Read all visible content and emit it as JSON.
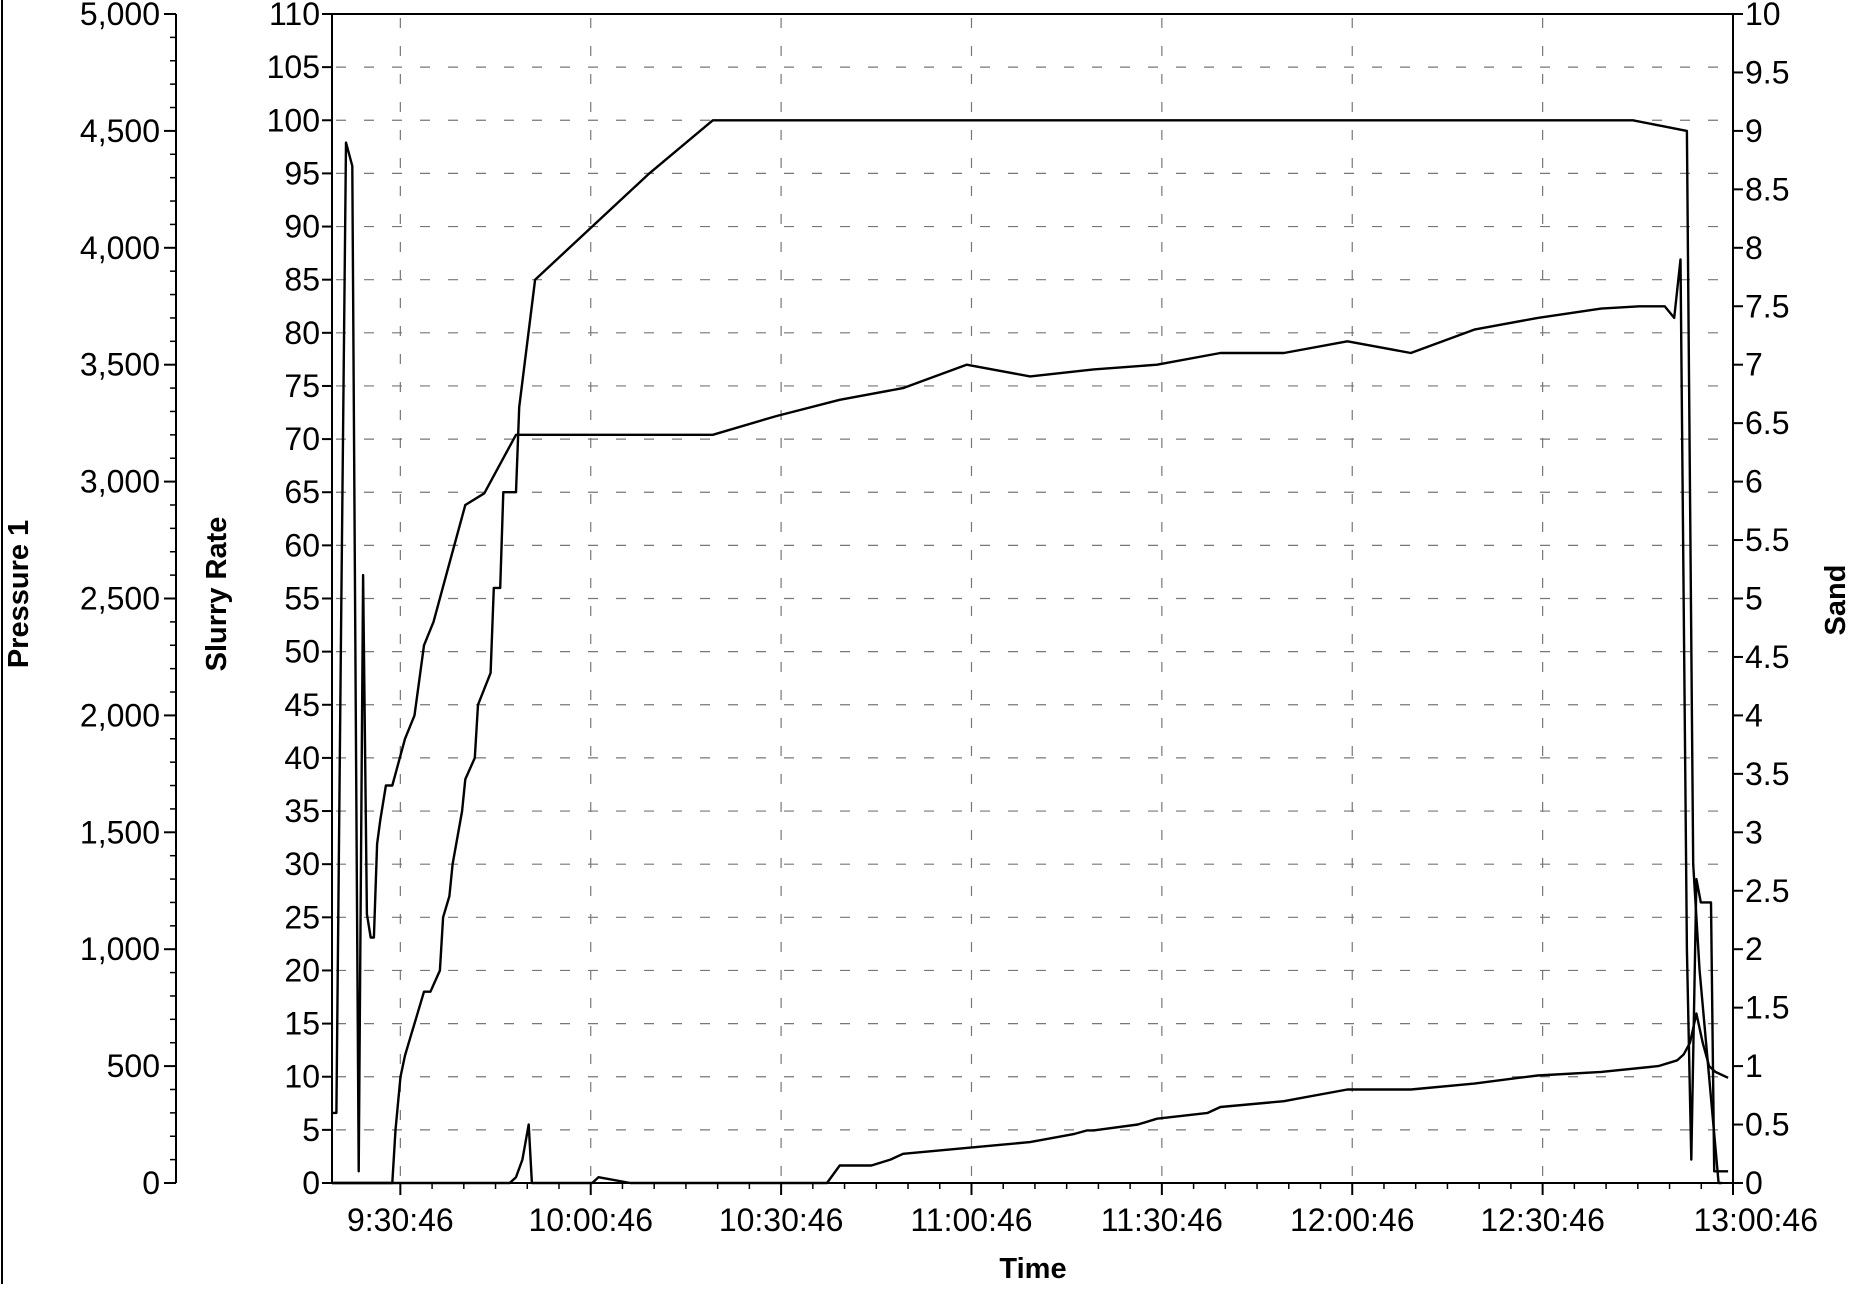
{
  "chart_data": {
    "type": "line",
    "xlabel": "Time",
    "ylabels": {
      "left_outer": "Pressure 1",
      "left_inner": "Slurry Rate",
      "right": "Sand"
    },
    "x_ticks": [
      "9:30:46",
      "10:00:46",
      "10:30:46",
      "11:00:46",
      "11:30:46",
      "12:00:46",
      "12:30:46",
      "13:00:46"
    ],
    "xlim": [
      "9:20:00",
      "13:00:46"
    ],
    "axes": {
      "pressure": {
        "ylim": [
          0,
          5000
        ],
        "ticks": [
          "0",
          "500",
          "1,000",
          "1,500",
          "2,000",
          "2,500",
          "3,000",
          "3,500",
          "4,000",
          "4,500",
          "5,000"
        ]
      },
      "slurry_rate": {
        "ylim": [
          0,
          110
        ],
        "ticks": [
          "0",
          "5",
          "10",
          "15",
          "20",
          "25",
          "30",
          "35",
          "40",
          "45",
          "50",
          "55",
          "60",
          "65",
          "70",
          "75",
          "80",
          "85",
          "90",
          "95",
          "100",
          "105",
          "110"
        ]
      },
      "sand": {
        "ylim": [
          0,
          10
        ],
        "ticks": [
          "0",
          "0.5",
          "1",
          "1.5",
          "2",
          "2.5",
          "3",
          "3.5",
          "4",
          "4.5",
          "5",
          "5.5",
          "6",
          "6.5",
          "7",
          "7.5",
          "8",
          "8.5",
          "9",
          "9.5",
          "10"
        ]
      }
    },
    "grid": true,
    "legend": "none",
    "series": [
      {
        "axis": "slurry_rate",
        "x_minutes": [
          0,
          1.5,
          2.5,
          3.5,
          4.5,
          5.5,
          6.5,
          7.5,
          8.5,
          9.5,
          10,
          10.8,
          11.5,
          12.5,
          13,
          14.5,
          15.5,
          17,
          17.5,
          18.5,
          19,
          20.5,
          21,
          22.5,
          23,
          25,
          25.5,
          26.5,
          27,
          29,
          29.5,
          32,
          50,
          60,
          80,
          100,
          120,
          140,
          160,
          190,
          205,
          213.5,
          214.5,
          215.5,
          218.5,
          219
        ],
        "values": [
          0,
          0,
          0,
          0,
          0,
          0,
          0,
          0,
          0,
          0,
          5,
          10,
          12,
          14,
          15,
          18,
          18,
          20,
          25,
          27,
          30,
          35,
          38,
          40,
          45,
          48,
          56,
          56,
          65,
          65,
          73,
          85,
          95,
          100,
          100,
          100,
          100,
          100,
          100,
          100,
          100,
          99,
          30,
          20,
          0,
          0
        ]
      },
      {
        "axis": "sand",
        "x_minutes": [
          0,
          28,
          29,
          30,
          31,
          31.5,
          41,
          42,
          47,
          50,
          60,
          70,
          78,
          80,
          85,
          88,
          90,
          100,
          110,
          117,
          119,
          120,
          127,
          130,
          138,
          140,
          150,
          152,
          160,
          170,
          180,
          187,
          190,
          200,
          209,
          212,
          213,
          214,
          215,
          216,
          217,
          218,
          220
        ],
        "values": [
          0,
          0,
          0.05,
          0.2,
          0.5,
          0,
          0,
          0.05,
          0,
          0,
          0,
          0,
          0,
          0.15,
          0.15,
          0.2,
          0.25,
          0.3,
          0.35,
          0.42,
          0.45,
          0.45,
          0.5,
          0.55,
          0.6,
          0.65,
          0.7,
          0.72,
          0.8,
          0.8,
          0.85,
          0.9,
          0.92,
          0.95,
          1.0,
          1.05,
          1.1,
          1.2,
          1.45,
          1.2,
          1.0,
          0.95,
          0.9
        ]
      },
      {
        "axis": "pressure",
        "x_minutes": [
          0,
          0.7,
          1.4,
          2.2,
          3.2,
          4.2,
          4.9,
          5.5,
          6.1,
          6.6,
          7.1,
          7.6,
          8.5,
          9.5,
          11.5,
          13,
          14.5,
          16,
          18,
          21,
          24,
          27,
          29,
          30,
          40,
          50,
          60,
          70,
          80,
          90,
          100,
          110,
          120,
          130,
          140,
          150,
          160,
          170,
          180,
          190,
          200,
          206,
          210,
          211.5,
          212.5,
          213.5,
          214.2,
          215,
          215.7,
          216.5,
          217.3,
          217.8,
          218.5,
          219.2,
          220
        ],
        "values": [
          300,
          300,
          2300,
          4450,
          4350,
          50,
          2600,
          1150,
          1050,
          1050,
          1450,
          1550,
          1700,
          1700,
          1900,
          2000,
          2300,
          2400,
          2600,
          2900,
          2950,
          3100,
          3200,
          3200,
          3200,
          3200,
          3200,
          3280,
          3350,
          3400,
          3500,
          3450,
          3480,
          3500,
          3550,
          3550,
          3600,
          3550,
          3650,
          3700,
          3740,
          3750,
          3750,
          3700,
          3950,
          1000,
          100,
          1300,
          1200,
          1200,
          1200,
          50,
          50,
          50,
          50
        ]
      }
    ]
  }
}
